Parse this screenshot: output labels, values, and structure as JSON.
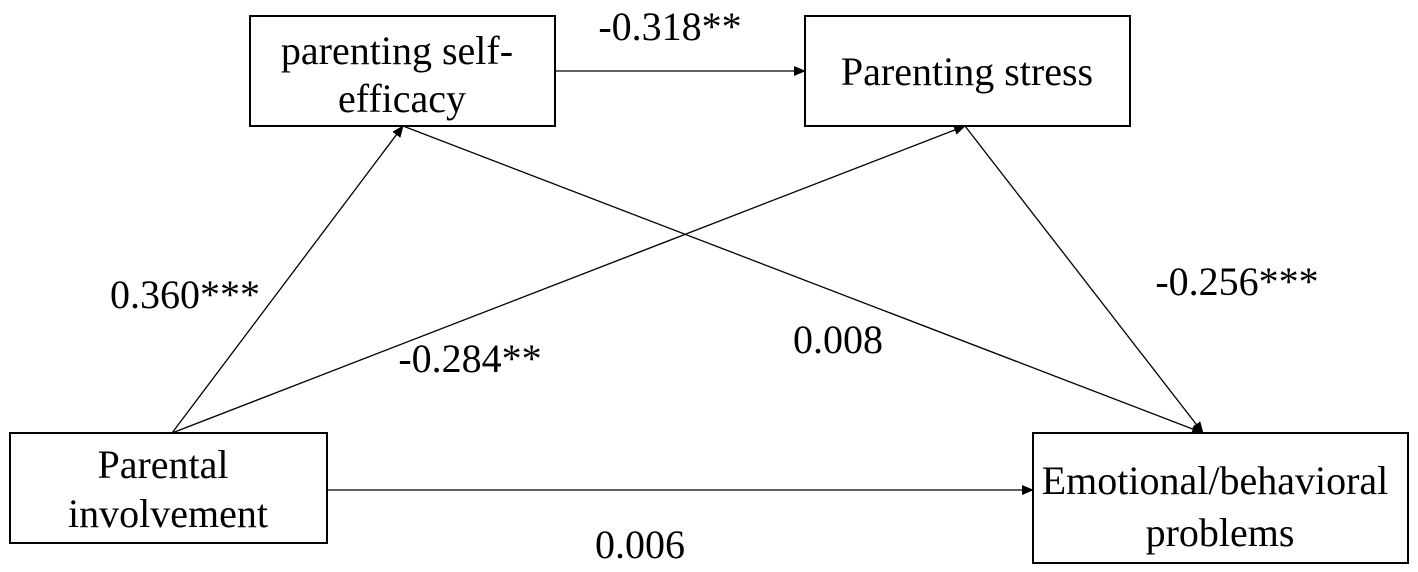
{
  "nodes": [
    {
      "lines": [
        "parenting self-",
        "efficacy"
      ]
    },
    {
      "lines": [
        "Parenting stress"
      ]
    },
    {
      "lines": [
        "Parental",
        "involvement"
      ]
    },
    {
      "lines": [
        "Emotional/behavioral",
        "problems"
      ]
    }
  ],
  "edges": [
    {
      "label": "-0.318**"
    },
    {
      "label": "0.360***"
    },
    {
      "label": "-0.284**"
    },
    {
      "label": "-0.256***"
    },
    {
      "label": "0.008"
    },
    {
      "label": "0.006"
    }
  ]
}
